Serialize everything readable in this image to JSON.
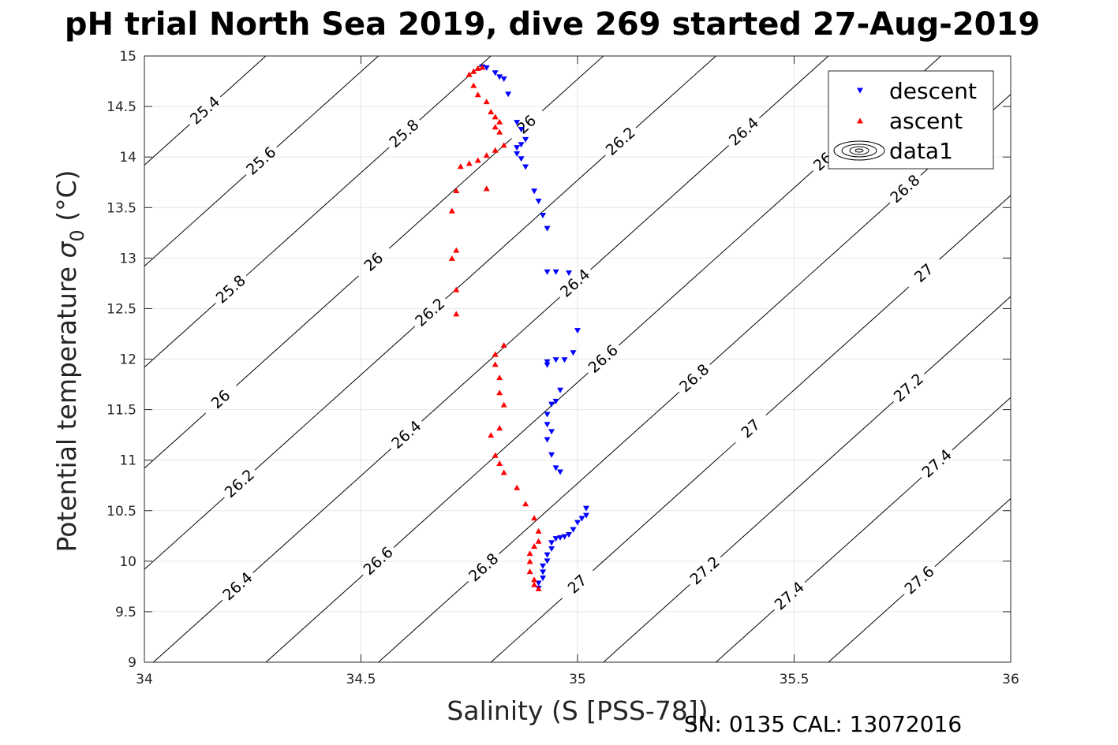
{
  "chart_data": {
    "type": "scatter",
    "title": "pH trial North Sea 2019, dive 269 started 27-Aug-2019",
    "xlabel": "Salinity (S [PSS-78])",
    "ylabel": "Potential temperature σ₀ (°C)",
    "ylabel_main": "Potential temperature ",
    "ylabel_sigma": "σ",
    "ylabel_sub": "0",
    "ylabel_unit": " (°C)",
    "xlim": [
      34,
      36
    ],
    "ylim": [
      9,
      15
    ],
    "xticks": [
      34,
      34.5,
      35,
      35.5,
      36
    ],
    "xtick_labels": [
      "34",
      "34.5",
      "35",
      "35.5",
      "36"
    ],
    "yticks": [
      9,
      9.5,
      10,
      10.5,
      11,
      11.5,
      12,
      12.5,
      13,
      13.5,
      14,
      14.5,
      15
    ],
    "ytick_labels": [
      "9",
      "9.5",
      "10",
      "10.5",
      "11",
      "11.5",
      "12",
      "12.5",
      "13",
      "13.5",
      "14",
      "14.5",
      "15"
    ],
    "grid": true,
    "legend_position": "top-right",
    "series": [
      {
        "name": "descent",
        "marker": "triangle-down",
        "color": "#0000ff",
        "points": [
          [
            34.78,
            14.89
          ],
          [
            34.79,
            14.88
          ],
          [
            34.81,
            14.83
          ],
          [
            34.82,
            14.79
          ],
          [
            34.83,
            14.77
          ],
          [
            34.84,
            14.62
          ],
          [
            34.86,
            14.34
          ],
          [
            34.87,
            14.27
          ],
          [
            34.88,
            14.17
          ],
          [
            34.87,
            14.12
          ],
          [
            34.86,
            14.09
          ],
          [
            34.86,
            14.03
          ],
          [
            34.87,
            13.98
          ],
          [
            34.88,
            13.9
          ],
          [
            34.9,
            13.66
          ],
          [
            34.91,
            13.56
          ],
          [
            34.92,
            13.42
          ],
          [
            34.93,
            13.29
          ],
          [
            34.93,
            12.86
          ],
          [
            34.95,
            12.86
          ],
          [
            34.98,
            12.85
          ],
          [
            35.0,
            12.28
          ],
          [
            34.99,
            12.06
          ],
          [
            34.97,
            11.99
          ],
          [
            34.95,
            11.99
          ],
          [
            34.93,
            11.97
          ],
          [
            34.93,
            11.94
          ],
          [
            34.96,
            11.69
          ],
          [
            34.95,
            11.58
          ],
          [
            34.94,
            11.55
          ],
          [
            34.93,
            11.45
          ],
          [
            34.93,
            11.35
          ],
          [
            34.94,
            11.28
          ],
          [
            34.93,
            11.2
          ],
          [
            34.94,
            11.05
          ],
          [
            34.95,
            10.92
          ],
          [
            34.96,
            10.88
          ],
          [
            35.02,
            10.52
          ],
          [
            35.02,
            10.45
          ],
          [
            35.01,
            10.42
          ],
          [
            35.0,
            10.38
          ],
          [
            34.99,
            10.31
          ],
          [
            34.98,
            10.26
          ],
          [
            34.97,
            10.24
          ],
          [
            34.96,
            10.23
          ],
          [
            34.95,
            10.22
          ],
          [
            34.94,
            10.18
          ],
          [
            34.94,
            10.12
          ],
          [
            34.93,
            10.06
          ],
          [
            34.93,
            10.0
          ],
          [
            34.92,
            9.95
          ],
          [
            34.92,
            9.89
          ],
          [
            34.92,
            9.83
          ],
          [
            34.91,
            9.78
          ],
          [
            34.91,
            9.73
          ]
        ]
      },
      {
        "name": "ascent",
        "marker": "triangle-up",
        "color": "#ff0000",
        "points": [
          [
            34.78,
            14.89
          ],
          [
            34.77,
            14.88
          ],
          [
            34.76,
            14.85
          ],
          [
            34.75,
            14.82
          ],
          [
            34.76,
            14.71
          ],
          [
            34.77,
            14.62
          ],
          [
            34.79,
            14.55
          ],
          [
            34.8,
            14.45
          ],
          [
            34.81,
            14.4
          ],
          [
            34.82,
            14.35
          ],
          [
            34.81,
            14.3
          ],
          [
            34.82,
            14.25
          ],
          [
            34.83,
            14.12
          ],
          [
            34.81,
            14.07
          ],
          [
            34.79,
            14.02
          ],
          [
            34.77,
            13.97
          ],
          [
            34.75,
            13.94
          ],
          [
            34.73,
            13.91
          ],
          [
            34.79,
            13.69
          ],
          [
            34.72,
            13.67
          ],
          [
            34.71,
            13.47
          ],
          [
            34.72,
            13.08
          ],
          [
            34.71,
            13.0
          ],
          [
            34.72,
            12.69
          ],
          [
            34.72,
            12.45
          ],
          [
            34.83,
            12.14
          ],
          [
            34.81,
            12.05
          ],
          [
            34.81,
            11.95
          ],
          [
            34.82,
            11.82
          ],
          [
            34.82,
            11.67
          ],
          [
            34.83,
            11.55
          ],
          [
            34.82,
            11.32
          ],
          [
            34.8,
            11.25
          ],
          [
            34.81,
            11.05
          ],
          [
            34.82,
            10.97
          ],
          [
            34.83,
            10.88
          ],
          [
            34.86,
            10.73
          ],
          [
            34.88,
            10.57
          ],
          [
            34.9,
            10.43
          ],
          [
            34.91,
            10.3
          ],
          [
            34.91,
            10.2
          ],
          [
            34.9,
            10.15
          ],
          [
            34.89,
            10.08
          ],
          [
            34.89,
            10.0
          ],
          [
            34.89,
            9.9
          ],
          [
            34.9,
            9.82
          ],
          [
            34.9,
            9.77
          ],
          [
            34.91,
            9.73
          ]
        ]
      }
    ],
    "legend": [
      "descent",
      "ascent",
      "data1"
    ],
    "contours": [
      {
        "sigma": 25.4,
        "labels": [
          "25.4"
        ]
      },
      {
        "sigma": 25.6,
        "labels": [
          "25.6"
        ]
      },
      {
        "sigma": 25.8,
        "labels": [
          "25.8",
          "25.8"
        ]
      },
      {
        "sigma": 26.0,
        "labels": [
          "26",
          "26",
          "26"
        ]
      },
      {
        "sigma": 26.2,
        "labels": [
          "26.2",
          "26.2",
          "26.2"
        ]
      },
      {
        "sigma": 26.4,
        "labels": [
          "26.4",
          "26.4",
          "26.4",
          "26.4"
        ]
      },
      {
        "sigma": 26.6,
        "labels": [
          "26.6",
          "26.6",
          "26.6"
        ]
      },
      {
        "sigma": 26.8,
        "labels": [
          "26.8",
          "26.8",
          "26.8"
        ]
      },
      {
        "sigma": 27.0,
        "labels": [
          "27",
          "27",
          "27"
        ]
      },
      {
        "sigma": 27.2,
        "labels": [
          "27.2",
          "27.2"
        ]
      },
      {
        "sigma": 27.4,
        "labels": [
          "27.4",
          "27.4"
        ]
      },
      {
        "sigma": 27.6,
        "labels": [
          "27.6"
        ]
      }
    ]
  },
  "footer": {
    "serial": "SN: 0135  CAL: 13072016"
  }
}
